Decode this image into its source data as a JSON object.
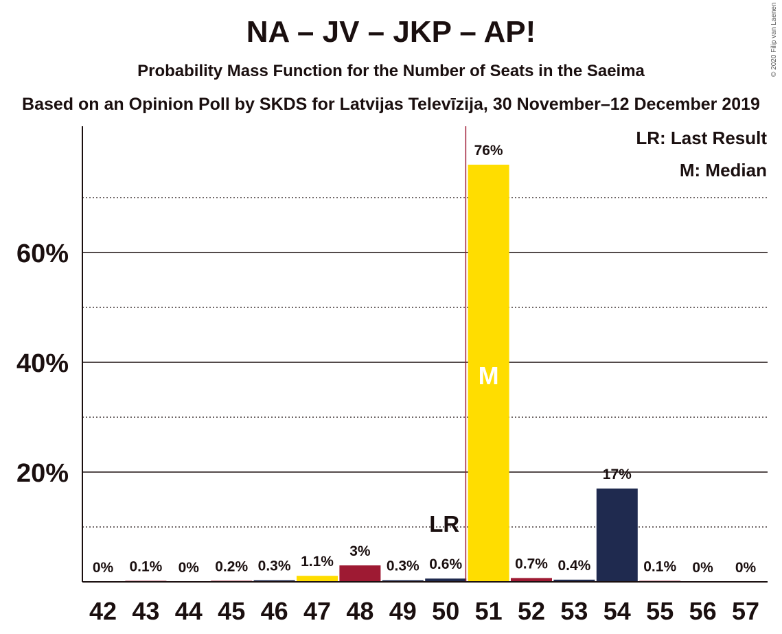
{
  "title": "NA – JV – JKP – AP!",
  "subtitle": "Probability Mass Function for the Number of Seats in the Saeima",
  "subtitle2": "Based on an Opinion Poll by SKDS for Latvijas Televīzija, 30 November–12 December 2019",
  "copyright": "© 2020 Filip van Laenen",
  "legend": {
    "last_result": "LR: Last Result",
    "median": "M: Median"
  },
  "markers": {
    "last_result_label": "LR",
    "median_label": "M"
  },
  "chart_data": {
    "type": "bar",
    "categories": [
      "42",
      "43",
      "44",
      "45",
      "46",
      "47",
      "48",
      "49",
      "50",
      "51",
      "52",
      "53",
      "54",
      "55",
      "56",
      "57"
    ],
    "values": [
      0,
      0.1,
      0,
      0.2,
      0.3,
      1.1,
      3,
      0.3,
      0.6,
      76,
      0.7,
      0.4,
      17,
      0.1,
      0,
      0
    ],
    "labels": [
      "0%",
      "0.1%",
      "0%",
      "0.2%",
      "0.3%",
      "1.1%",
      "3%",
      "0.3%",
      "0.6%",
      "76%",
      "0.7%",
      "0.4%",
      "17%",
      "0.1%",
      "0%",
      "0%"
    ],
    "colors": [
      "#FFDD00",
      "#9E1A33",
      "#FFDD00",
      "#9E1A33",
      "#1F2A4F",
      "#FFDD00",
      "#9E1A33",
      "#1F2A4F",
      "#1F2A4F",
      "#FFDD00",
      "#9E1A33",
      "#1F2A4F",
      "#1F2A4F",
      "#9E1A33",
      "#FFDD00",
      "#9E1A33"
    ],
    "yticks": [
      20,
      40,
      60
    ],
    "ytick_labels": [
      "20%",
      "40%",
      "60%"
    ],
    "ylim": [
      0,
      83
    ],
    "grid_major": [
      20,
      40,
      60
    ],
    "grid_minor": [
      10,
      30,
      50,
      70
    ],
    "last_result_seat": "50",
    "median_seat": "51",
    "lr_line_color": "#9E1A33",
    "legend_position": "top-right"
  }
}
